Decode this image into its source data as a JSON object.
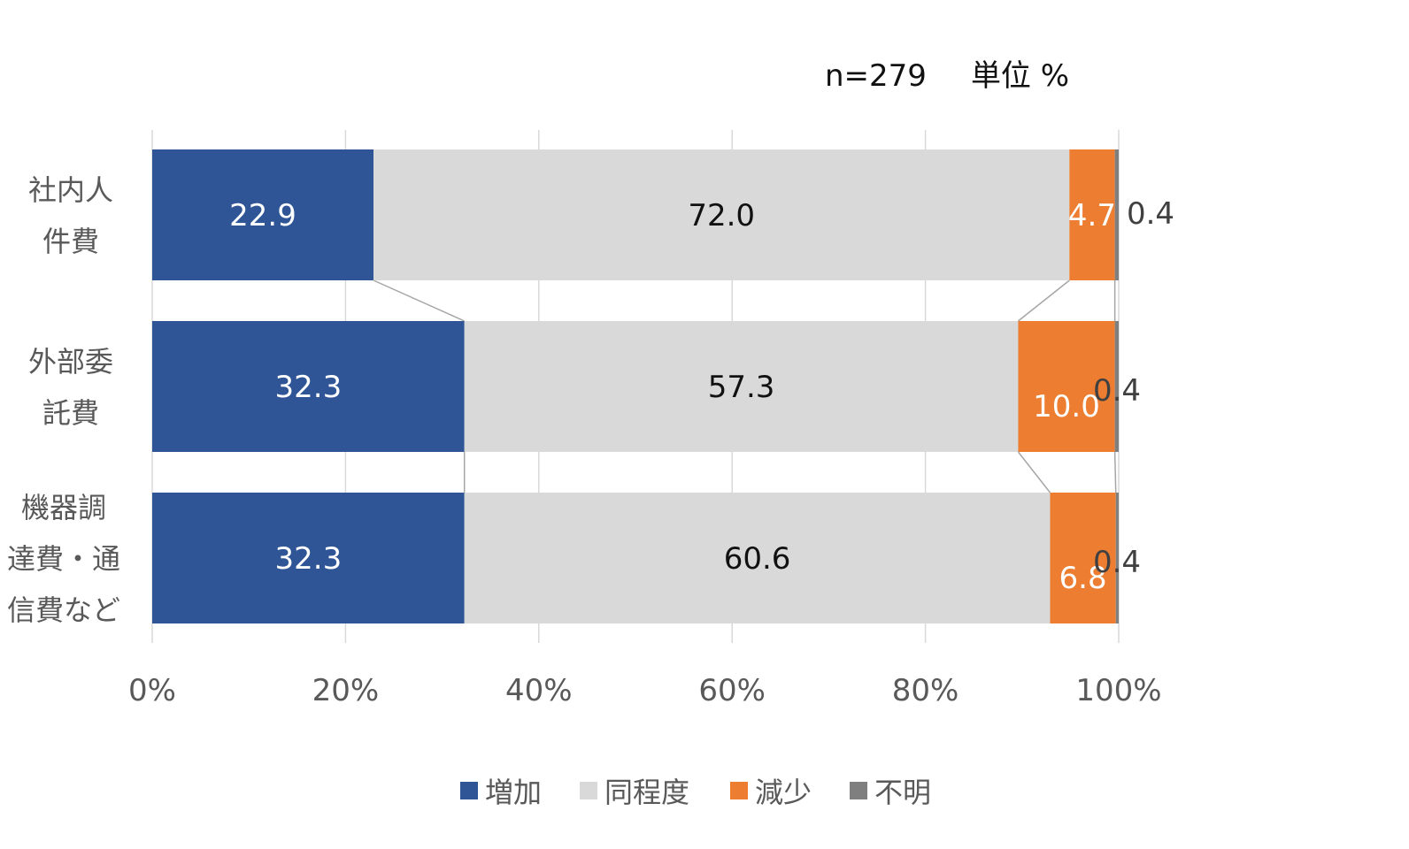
{
  "chart_data": {
    "type": "bar",
    "orientation": "horizontal",
    "stacked": "percent",
    "note_n": "n=279",
    "note_unit": "単位 %",
    "categories": [
      [
        "社内人",
        "件費"
      ],
      [
        "外部委",
        "託費"
      ],
      [
        "機器調",
        "達費・通",
        "信費など"
      ]
    ],
    "series": [
      {
        "name": "増加",
        "color": "#2F5597",
        "label_color": "#FFFFFF",
        "values": [
          22.9,
          32.3,
          32.3
        ]
      },
      {
        "name": "同程度",
        "color": "#D9D9D9",
        "label_color": "#111111",
        "values": [
          72.0,
          57.3,
          60.6
        ]
      },
      {
        "name": "減少",
        "color": "#ED7D31",
        "label_color": "#FFFFFF",
        "values": [
          4.7,
          10.0,
          6.8
        ]
      },
      {
        "name": "不明",
        "color": "#7F7F7F",
        "label_color": "#404040",
        "values": [
          0.4,
          0.4,
          0.4
        ]
      }
    ],
    "xlim": [
      0,
      100
    ],
    "xticks": [
      "0%",
      "20%",
      "40%",
      "60%",
      "80%",
      "100%"
    ],
    "grid": true,
    "series_lines": true,
    "legend": "bottom"
  }
}
